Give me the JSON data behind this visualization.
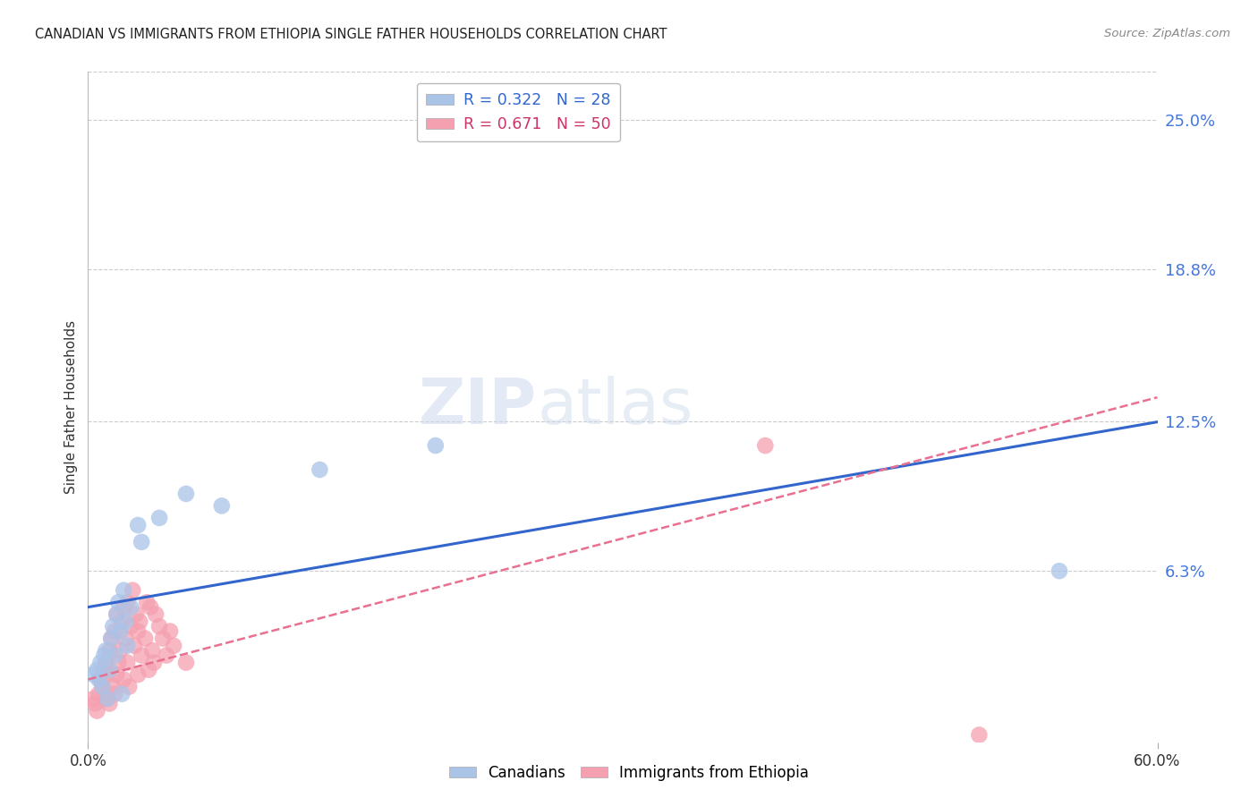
{
  "title": "CANADIAN VS IMMIGRANTS FROM ETHIOPIA SINGLE FATHER HOUSEHOLDS CORRELATION CHART",
  "source": "Source: ZipAtlas.com",
  "ylabel": "Single Father Households",
  "ytick_values": [
    0.25,
    0.188,
    0.125,
    0.063
  ],
  "xlim": [
    0.0,
    0.6
  ],
  "ylim": [
    -0.008,
    0.27
  ],
  "legend_entries": [
    {
      "label": "R = 0.322   N = 28",
      "color": "#aac4e8"
    },
    {
      "label": "R = 0.671   N = 50",
      "color": "#f5a0b0"
    }
  ],
  "canadians_x": [
    0.003,
    0.005,
    0.006,
    0.007,
    0.008,
    0.009,
    0.01,
    0.011,
    0.012,
    0.013,
    0.014,
    0.015,
    0.016,
    0.017,
    0.018,
    0.019,
    0.02,
    0.021,
    0.022,
    0.024,
    0.028,
    0.03,
    0.04,
    0.055,
    0.075,
    0.13,
    0.195,
    0.545
  ],
  "canadians_y": [
    0.02,
    0.022,
    0.018,
    0.025,
    0.015,
    0.028,
    0.03,
    0.01,
    0.022,
    0.035,
    0.04,
    0.028,
    0.045,
    0.05,
    0.038,
    0.012,
    0.055,
    0.042,
    0.032,
    0.048,
    0.082,
    0.075,
    0.085,
    0.095,
    0.09,
    0.105,
    0.115,
    0.063
  ],
  "ethiopia_x": [
    0.003,
    0.004,
    0.005,
    0.006,
    0.007,
    0.008,
    0.009,
    0.01,
    0.01,
    0.011,
    0.012,
    0.012,
    0.013,
    0.014,
    0.015,
    0.015,
    0.016,
    0.016,
    0.017,
    0.018,
    0.019,
    0.02,
    0.02,
    0.021,
    0.022,
    0.022,
    0.023,
    0.024,
    0.025,
    0.026,
    0.027,
    0.028,
    0.028,
    0.029,
    0.03,
    0.032,
    0.033,
    0.034,
    0.035,
    0.036,
    0.037,
    0.038,
    0.04,
    0.042,
    0.044,
    0.046,
    0.048,
    0.055,
    0.38,
    0.5
  ],
  "ethiopia_y": [
    0.01,
    0.008,
    0.005,
    0.012,
    0.018,
    0.015,
    0.022,
    0.01,
    0.025,
    0.02,
    0.008,
    0.03,
    0.035,
    0.015,
    0.012,
    0.038,
    0.02,
    0.045,
    0.025,
    0.03,
    0.042,
    0.018,
    0.048,
    0.035,
    0.025,
    0.05,
    0.015,
    0.04,
    0.055,
    0.032,
    0.045,
    0.02,
    0.038,
    0.042,
    0.028,
    0.035,
    0.05,
    0.022,
    0.048,
    0.03,
    0.025,
    0.045,
    0.04,
    0.035,
    0.028,
    0.038,
    0.032,
    0.025,
    0.115,
    -0.005
  ],
  "canadian_color": "#aac4e8",
  "ethiopia_color": "#f5a0b0",
  "canadian_line_color": "#3366cc",
  "ethiopia_line_color": "#e87090",
  "watermark_zip": "ZIP",
  "watermark_atlas": "atlas",
  "background_color": "#ffffff",
  "grid_color": "#cccccc",
  "canadian_line_intercept": 0.048,
  "canadian_line_slope": 0.128,
  "ethiopia_line_intercept": 0.018,
  "ethiopia_line_slope": 0.195
}
